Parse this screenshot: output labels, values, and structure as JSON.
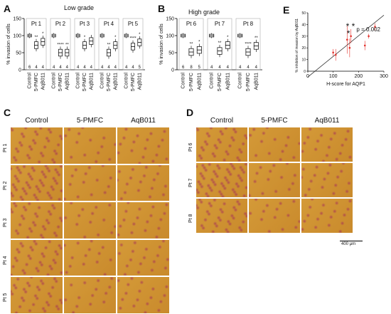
{
  "panels": {
    "A": {
      "letter": "A",
      "title": "Low grade",
      "ylabel": "% invasion of cells",
      "yticks": [
        "0",
        "50",
        "100",
        "150"
      ],
      "groups": [
        {
          "name": "Pt 1",
          "n": [
            "6",
            "4",
            "4"
          ],
          "sig": [
            "",
            "**",
            "*"
          ]
        },
        {
          "name": "Pt 2",
          "n": [
            "4",
            "4",
            "4"
          ],
          "sig": [
            "",
            "****",
            "**"
          ]
        },
        {
          "name": "Pt 3",
          "n": [
            "4",
            "4",
            "4"
          ],
          "sig": [
            "",
            "*",
            ""
          ]
        },
        {
          "name": "Pt 4",
          "n": [
            "4",
            "4",
            "4"
          ],
          "sig": [
            "",
            "**",
            "*"
          ]
        },
        {
          "name": "Pt 5",
          "n": [
            "4",
            "4",
            "5"
          ],
          "sig": [
            "",
            "****",
            "*"
          ]
        }
      ],
      "xcats": [
        "Control",
        "5-PMFC",
        "AqB011"
      ]
    },
    "B": {
      "letter": "B",
      "title": "High grade",
      "ylabel": "% invasion of cells",
      "yticks": [
        "0",
        "50",
        "100",
        "150"
      ],
      "groups": [
        {
          "name": "Pt 6",
          "n": [
            "6",
            "8",
            "5"
          ],
          "sig": [
            "",
            "**",
            "*"
          ]
        },
        {
          "name": "Pt 7",
          "n": [
            "4",
            "4",
            "4"
          ],
          "sig": [
            "",
            "**",
            "*"
          ]
        },
        {
          "name": "Pt 8",
          "n": [
            "4",
            "4",
            "4"
          ],
          "sig": [
            "",
            "****",
            "**"
          ]
        }
      ],
      "xcats": [
        "Control",
        "5-PMFC",
        "AqB011"
      ]
    },
    "C": {
      "letter": "C",
      "cols": [
        "Control",
        "5-PMFC",
        "AqB011"
      ],
      "rows": [
        "Pt 1",
        "Pt 2",
        "Pt 3",
        "Pt 4",
        "Pt 5"
      ]
    },
    "D": {
      "letter": "D",
      "cols": [
        "Control",
        "5-PMFC",
        "AqB011"
      ],
      "rows": [
        "Pt 6",
        "Pt 7",
        "Pt 8"
      ],
      "scalebar": "400 μm"
    },
    "E": {
      "letter": "E",
      "pvalue": "p = 0.002",
      "stars": "* *\n*"
    }
  },
  "colors": {
    "mic_bg": "#d49a38",
    "mic_stain": "#a32a5a",
    "error": "#e2302a",
    "line": "#333333"
  },
  "chart_data": [
    {
      "type": "box",
      "panel": "A",
      "categories": [
        "Control",
        "5-PMFC",
        "AqB011"
      ],
      "series": [
        {
          "name": "Pt 1",
          "values": [
            100,
            72,
            82
          ]
        },
        {
          "name": "Pt 2",
          "values": [
            100,
            50,
            50
          ]
        },
        {
          "name": "Pt 3",
          "values": [
            100,
            72,
            84
          ]
        },
        {
          "name": "Pt 4",
          "values": [
            100,
            50,
            72
          ]
        },
        {
          "name": "Pt 5",
          "values": [
            100,
            68,
            80
          ]
        }
      ],
      "ylim": [
        0,
        150
      ],
      "ylabel": "% invasion of cells"
    },
    {
      "type": "box",
      "panel": "B",
      "categories": [
        "Control",
        "5-PMFC",
        "AqB011"
      ],
      "series": [
        {
          "name": "Pt 6",
          "values": [
            100,
            52,
            58
          ]
        },
        {
          "name": "Pt 7",
          "values": [
            100,
            55,
            72
          ]
        },
        {
          "name": "Pt 8",
          "values": [
            100,
            52,
            70
          ]
        }
      ],
      "ylim": [
        0,
        150
      ],
      "ylabel": "% invasion of cells"
    },
    {
      "type": "scatter",
      "panel": "E",
      "x": [
        100,
        110,
        155,
        165,
        170,
        225,
        240,
        265
      ],
      "y": [
        16,
        14,
        27,
        20,
        30,
        22,
        30,
        38
      ],
      "yerr": [
        3,
        5,
        12,
        8,
        6,
        4,
        2,
        3
      ],
      "xlim": [
        0,
        300
      ],
      "ylim": [
        0,
        50
      ],
      "xticks": [
        "0",
        "100",
        "200",
        "300"
      ],
      "yticks": [
        "0",
        "10",
        "20",
        "30",
        "40",
        "50"
      ],
      "xlabel": "H-score for AQP1",
      "ylabel": "% inhibition of invasion by AqB011",
      "fit": {
        "x": [
          0,
          300
        ],
        "y": [
          -5,
          48
        ]
      }
    }
  ]
}
